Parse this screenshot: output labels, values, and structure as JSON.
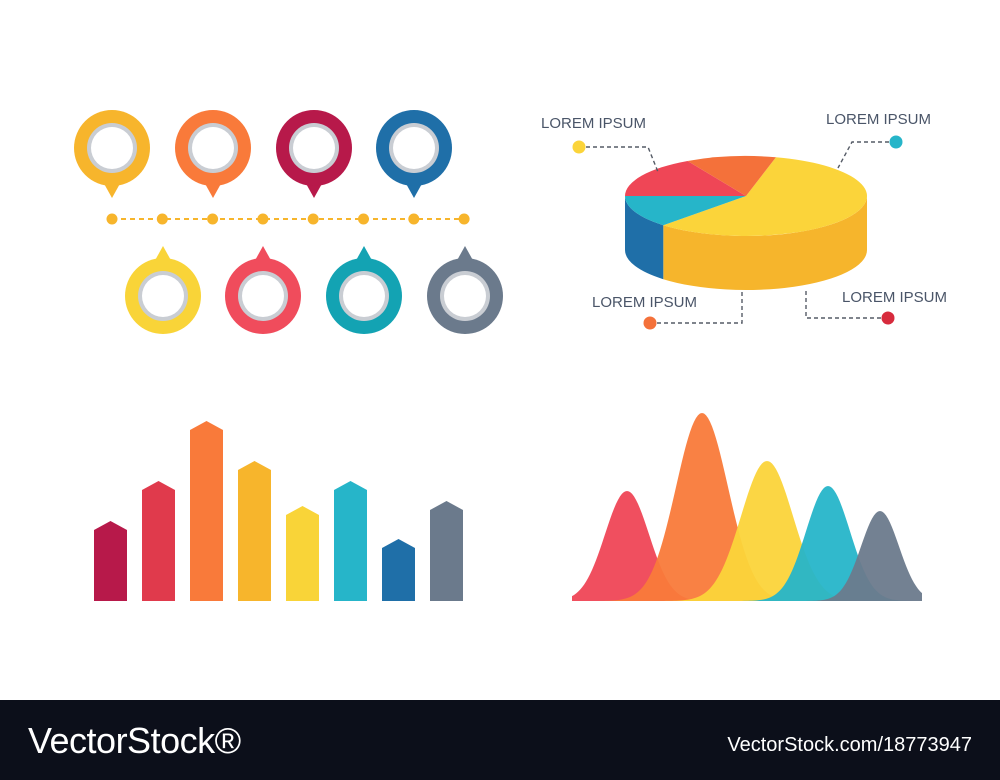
{
  "chart_data": [
    {
      "type": "timeline",
      "markers_top": [
        {
          "color": "#f7b52c",
          "pointer": "down"
        },
        {
          "color": "#f97a3a",
          "pointer": "down"
        },
        {
          "color": "#b7194a",
          "pointer": "down"
        },
        {
          "color": "#1f6fa8",
          "pointer": "down"
        }
      ],
      "markers_bottom": [
        {
          "color": "#f9d438",
          "pointer": "up"
        },
        {
          "color": "#f04c5c",
          "pointer": "up"
        },
        {
          "color": "#13a3b3",
          "pointer": "up"
        },
        {
          "color": "#6b7a8c",
          "pointer": "up"
        }
      ],
      "line_color": "#f7b52c",
      "dot_count": 8
    },
    {
      "type": "pie",
      "style": "3d",
      "slices": [
        {
          "value": 58,
          "color": "#fbd43a",
          "side_color": "#f6b52c"
        },
        {
          "value": 13,
          "color": "#26b5c9",
          "side_color": "#1f6fa8"
        },
        {
          "value": 17,
          "color": "#ef4656",
          "side_color": "#d72b3d"
        },
        {
          "value": 12,
          "color": "#f4713a",
          "side_color": "#e25a2b"
        }
      ],
      "labels": [
        {
          "text": "LOREM IPSUM",
          "color": "#fbd43a"
        },
        {
          "text": "LOREM IPSUM",
          "color": "#26b5c9"
        },
        {
          "text": "LOREM IPSUM",
          "color": "#f4713a"
        },
        {
          "text": "LOREM IPSUM",
          "color": "#d72b3d"
        }
      ]
    },
    {
      "type": "bar",
      "values": [
        80,
        120,
        180,
        140,
        95,
        120,
        62,
        100
      ],
      "colors": [
        "#b7194a",
        "#e03a4c",
        "#f97a3a",
        "#f7b52c",
        "#f9d438",
        "#26b5c9",
        "#1f6fa8",
        "#6b7a8c"
      ],
      "ylim": [
        0,
        190
      ],
      "grid": false
    },
    {
      "type": "area",
      "series": [
        {
          "peak": 110,
          "color": "#ef4656"
        },
        {
          "peak": 188,
          "color": "#f97a3a"
        },
        {
          "peak": 140,
          "color": "#fbd43a"
        },
        {
          "peak": 115,
          "color": "#26b5c9"
        },
        {
          "peak": 90,
          "color": "#6b7a8c"
        }
      ],
      "ylim": [
        0,
        200
      ],
      "grid": false
    }
  ],
  "footer": {
    "brand": "VectorStock®",
    "image_id": "VectorStock.com/18773947"
  }
}
